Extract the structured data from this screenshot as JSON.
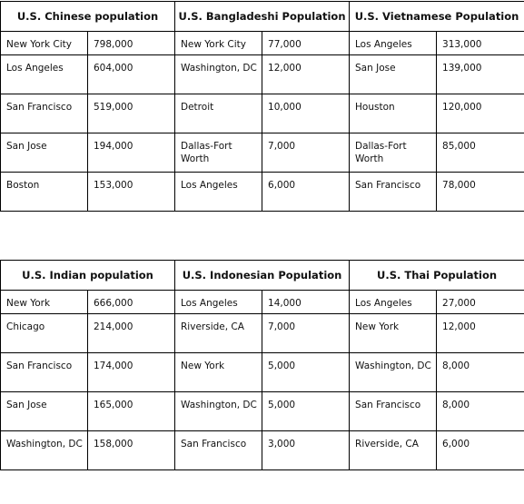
{
  "tables": [
    {
      "headers": [
        "U.S. Chinese population",
        "U.S. Bangladeshi Population",
        "U.S. Vietnamese Population"
      ],
      "rows": [
        [
          "New York City",
          "798,000",
          "New York City",
          "77,000",
          "Los Angeles",
          "313,000"
        ],
        [
          "Los Angeles",
          "604,000",
          "Washington, DC",
          "12,000",
          "San Jose",
          "139,000"
        ],
        [
          "San Francisco",
          "519,000",
          "Detroit",
          "10,000",
          "Houston",
          "120,000"
        ],
        [
          "San Jose",
          "194,000",
          "Dallas-Fort Worth",
          "7,000",
          "Dallas-Fort Worth",
          "85,000"
        ],
        [
          "Boston",
          "153,000",
          "Los Angeles",
          "6,000",
          "San Francisco",
          "78,000"
        ]
      ]
    },
    {
      "headers": [
        "U.S. Indian population",
        "U.S. Indonesian Population",
        "U.S. Thai Population"
      ],
      "rows": [
        [
          "New York",
          "666,000",
          "Los Angeles",
          "14,000",
          "Los Angeles",
          "27,000"
        ],
        [
          "Chicago",
          "214,000",
          "Riverside, CA",
          "7,000",
          "New York",
          "12,000"
        ],
        [
          "San Francisco",
          "174,000",
          "New York",
          "5,000",
          "Washington, DC",
          "8,000"
        ],
        [
          "San Jose",
          "165,000",
          "Washington, DC",
          "5,000",
          "San Francisco",
          "8,000"
        ],
        [
          "Washington, DC",
          "158,000",
          "San Francisco",
          "3,000",
          "Riverside, CA",
          "6,000"
        ]
      ]
    }
  ]
}
